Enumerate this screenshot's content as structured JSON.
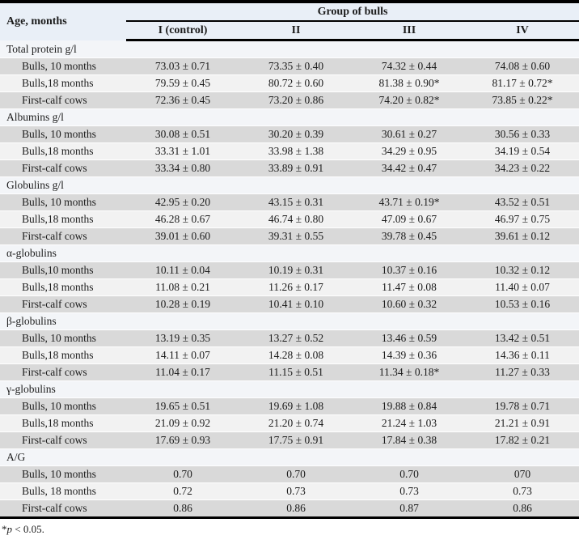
{
  "table": {
    "col1_header": "Age, months",
    "group_header": "Group of bulls",
    "columns": [
      "I (control)",
      "II",
      "III",
      "IV"
    ],
    "sections": [
      {
        "label": "Total protein g/l",
        "rows": [
          {
            "label": "Bulls, 10 months",
            "values": [
              "73.03 ± 0.71",
              "73.35 ± 0.40",
              "74.32 ± 0.44",
              "74.08 ± 0.60"
            ]
          },
          {
            "label": "Bulls,18 months",
            "values": [
              "79.59 ± 0.45",
              "80.72 ± 0.60",
              "81.38 ± 0.90*",
              "81.17 ± 0.72*"
            ]
          },
          {
            "label": "First-calf cows",
            "values": [
              "72.36 ± 0.45",
              "73.20 ± 0.86",
              "74.20 ± 0.82*",
              "73.85 ± 0.22*"
            ]
          }
        ]
      },
      {
        "label": "Albumins g/l",
        "rows": [
          {
            "label": "Bulls, 10 months",
            "values": [
              "30.08 ± 0.51",
              "30.20 ± 0.39",
              "30.61 ± 0.27",
              "30.56 ± 0.33"
            ]
          },
          {
            "label": "Bulls,18 months",
            "values": [
              "33.31 ± 1.01",
              "33.98 ± 1.38",
              "34.29 ± 0.95",
              "34.19 ± 0.54"
            ]
          },
          {
            "label": "First-calf cows",
            "values": [
              "33.34 ± 0.80",
              "33.89 ± 0.91",
              "34.42 ± 0.47",
              "34.23 ± 0.22"
            ]
          }
        ]
      },
      {
        "label": "Globulins g/l",
        "rows": [
          {
            "label": "Bulls, 10 months",
            "values": [
              "42.95 ± 0.20",
              "43.15 ± 0.31",
              "43.71 ± 0.19*",
              "43.52 ± 0.51"
            ]
          },
          {
            "label": "Bulls,18 months",
            "values": [
              "46.28 ± 0.67",
              "46.74 ± 0.80",
              "47.09 ± 0.67",
              "46.97 ± 0.75"
            ]
          },
          {
            "label": "First-calf cows",
            "values": [
              "39.01 ± 0.60",
              "39.31 ± 0.55",
              "39.78 ± 0.45",
              "39.61 ± 0.12"
            ]
          }
        ]
      },
      {
        "label": "α-globulins",
        "rows": [
          {
            "label": "Bulls,10 months",
            "values": [
              "10.11 ± 0.04",
              "10.19 ± 0.31",
              "10.37 ± 0.16",
              "10.32 ± 0.12"
            ]
          },
          {
            "label": "Bulls,18 months",
            "values": [
              "11.08 ± 0.21",
              "11.26 ± 0.17",
              "11.47 ± 0.08",
              "11.40 ± 0.07"
            ]
          },
          {
            "label": "First-calf cows",
            "values": [
              "10.28 ± 0.19",
              "10.41 ± 0.10",
              "10.60 ± 0.32",
              "10.53 ± 0.16"
            ]
          }
        ]
      },
      {
        "label": "β-globulins",
        "rows": [
          {
            "label": "Bulls, 10 months",
            "values": [
              "13.19 ± 0.35",
              "13.27 ± 0.52",
              "13.46 ± 0.59",
              "13.42 ± 0.51"
            ]
          },
          {
            "label": "Bulls,18 months",
            "values": [
              "14.11 ± 0.07",
              "14.28 ± 0.08",
              "14.39 ± 0.36",
              "14.36 ± 0.11"
            ]
          },
          {
            "label": "First-calf cows",
            "values": [
              "11.04 ± 0.17",
              "11.15 ± 0.51",
              "11.34 ± 0.18*",
              "11.27 ± 0.33"
            ]
          }
        ]
      },
      {
        "label": "γ-globulins",
        "rows": [
          {
            "label": "Bulls, 10 months",
            "values": [
              "19.65 ± 0.51",
              "19.69 ± 1.08",
              "19.88 ± 0.84",
              "19.78 ± 0.71"
            ]
          },
          {
            "label": "Bulls,18 months",
            "values": [
              "21.09 ± 0.92",
              "21.20 ± 0.74",
              "21.24 ± 1.03",
              "21.21 ± 0.91"
            ]
          },
          {
            "label": "First-calf cows",
            "values": [
              "17.69 ± 0.93",
              "17.75 ± 0.91",
              "17.84 ± 0.38",
              "17.82 ± 0.21"
            ]
          }
        ]
      },
      {
        "label": "A/G",
        "rows": [
          {
            "label": "Bulls, 10 months",
            "values": [
              "0.70",
              "0.70",
              "0.70",
              "070"
            ]
          },
          {
            "label": "Bulls, 18 months",
            "values": [
              "0.72",
              "0.73",
              "0.73",
              "0.73"
            ]
          },
          {
            "label": "First-calf cows",
            "values": [
              "0.86",
              "0.86",
              "0.87",
              "0.86"
            ]
          }
        ]
      }
    ],
    "footnote": {
      "marker": "*",
      "symbol": "p",
      "rest": " < 0.05."
    }
  },
  "colors": {
    "header_bg": "#e9eff7",
    "section_bg": "#f3f5f8",
    "row_dark": "#d9d9d9",
    "row_light": "#f2f2f2",
    "border": "#000000"
  }
}
